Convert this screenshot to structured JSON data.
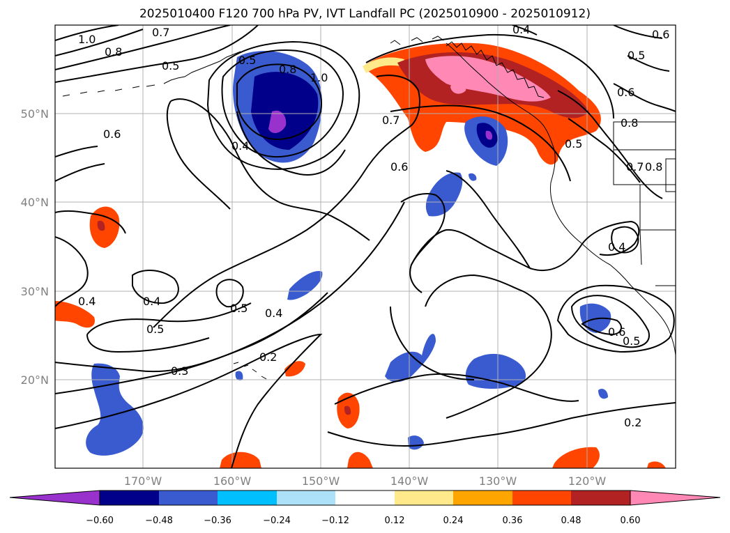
{
  "title": "2025010400 F120 700 hPa PV, IVT Landfall PC (2025010900 - 2025010912)",
  "lat_labels": [
    "50°N",
    "40°N",
    "30°N",
    "20°N"
  ],
  "lon_labels": [
    "170°W",
    "160°W",
    "150°W",
    "140°W",
    "130°W",
    "120°W"
  ],
  "contour_labels": [
    "1.0",
    "0.8",
    "0.7",
    "0.5",
    "0.5",
    "0.8",
    "1.0",
    "0.4",
    "0.6",
    "0.4",
    "0.7",
    "0.6",
    "0.5",
    "0.6",
    "0.8",
    "0.7",
    "0.8",
    "0.5",
    "0.4",
    "0.6",
    "0.4",
    "0.4",
    "0.5",
    "0.5",
    "0.4",
    "0.3",
    "0.2",
    "0.6",
    "0.5",
    "0.2"
  ],
  "colorbar": {
    "colors": [
      "#9932CC",
      "#00008B",
      "#3A5BCF",
      "#00BFFF",
      "#ADE0F9",
      "#FFFFFF",
      "#FFE98A",
      "#FFA500",
      "#FF4500",
      "#B22222",
      "#FF88B4"
    ],
    "ticks": [
      "−0.60",
      "−0.48",
      "−0.36",
      "−0.24",
      "−0.12",
      "0.12",
      "0.24",
      "0.36",
      "0.48",
      "0.60"
    ]
  }
}
